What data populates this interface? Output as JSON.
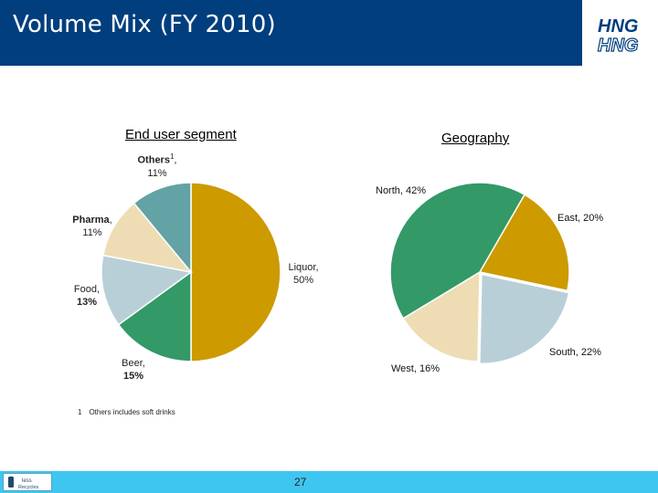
{
  "header": {
    "title": "Volume Mix (FY 2010)",
    "logo_line1": "HNG",
    "logo_line2": "HNG",
    "bg": "#003e7e"
  },
  "chart_data": [
    {
      "type": "pie",
      "title": "End user segment",
      "slices": [
        {
          "label": "Liquor",
          "value": 50,
          "value_text": "50%",
          "color": "#cd9a00"
        },
        {
          "label": "Beer",
          "value": 15,
          "value_text": "15%",
          "color": "#339966"
        },
        {
          "label": "Food",
          "value": 13,
          "value_text": "13%",
          "color": "#b9cfd7"
        },
        {
          "label": "Pharma",
          "value": 11,
          "value_text": "11%",
          "color": "#eeddb4"
        },
        {
          "label": "Others",
          "value": 11,
          "value_text": "11%",
          "color": "#63a2a5",
          "footnote_ref": "1"
        }
      ]
    },
    {
      "type": "pie",
      "title": "Geography",
      "slices": [
        {
          "label": "East",
          "value": 20,
          "text": "East, 20%",
          "color": "#cd9a00"
        },
        {
          "label": "South",
          "value": 22,
          "text": "South, 22%",
          "color": "#b9cfd7"
        },
        {
          "label": "West",
          "value": 16,
          "text": "West, 16%",
          "color": "#eeddb4"
        },
        {
          "label": "North",
          "value": 42,
          "text": "North, 42%",
          "color": "#339966"
        }
      ]
    }
  ],
  "footnote": {
    "number": "1",
    "text": "Others includes soft drinks"
  },
  "footer": {
    "page_number": "27",
    "logo_text_1": "less",
    "logo_text_2": "Recycles",
    "color": "#3fc6f0"
  }
}
